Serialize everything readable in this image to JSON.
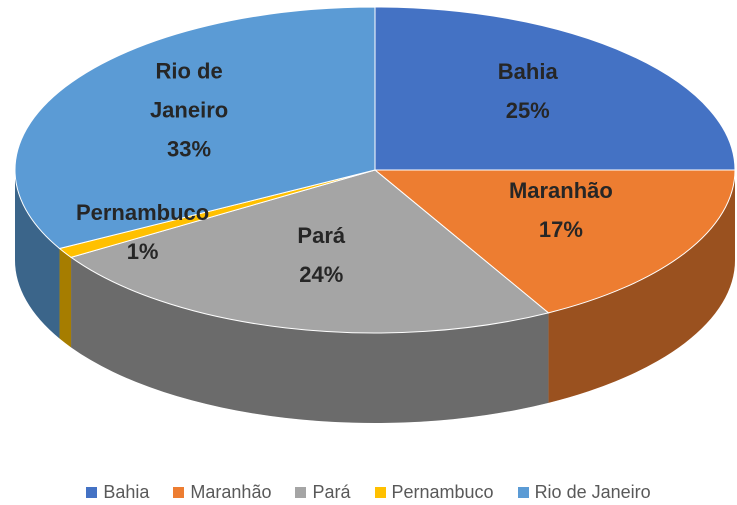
{
  "chart_data": {
    "type": "pie",
    "categories": [
      "Bahia",
      "Maranhão",
      "Pará",
      "Pernambuco",
      "Rio de Janeiro"
    ],
    "values": [
      25,
      17,
      24,
      1,
      33
    ],
    "value_labels": [
      "25%",
      "17%",
      "24%",
      "1%",
      "33%"
    ],
    "colors": [
      "#4472c4",
      "#ed7d31",
      "#a5a5a5",
      "#ffc000",
      "#5b9bd5"
    ],
    "legend": "bottom"
  }
}
